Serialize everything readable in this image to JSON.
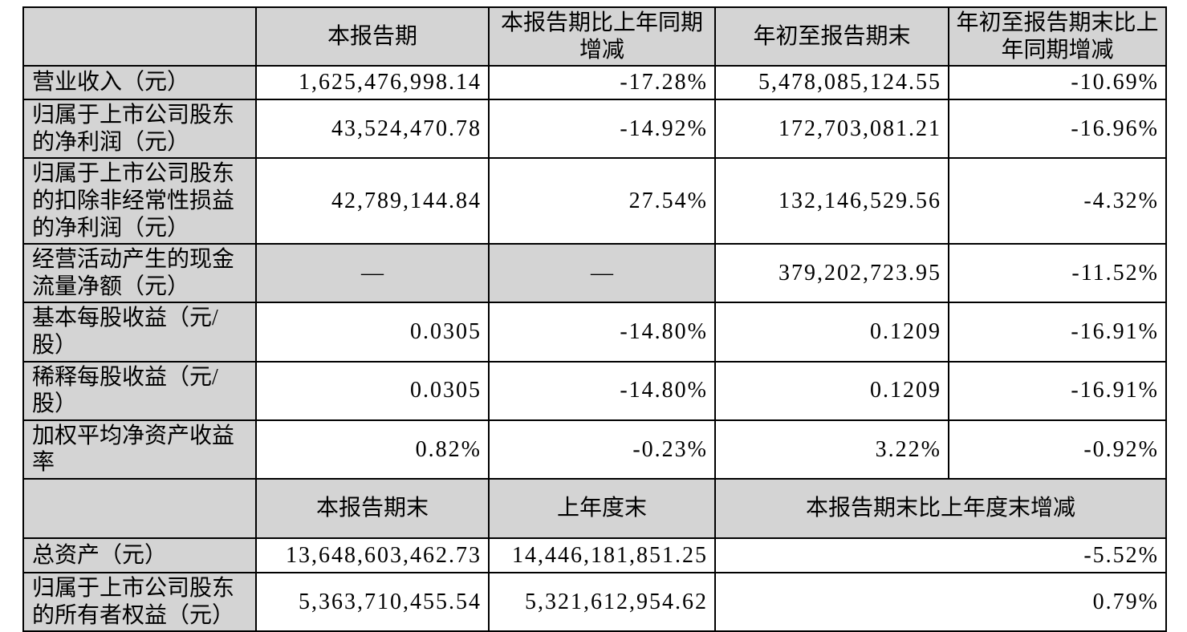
{
  "colors": {
    "header_bg": "#d4d4d4",
    "label_bg": "#d4d4d4",
    "cell_bg": "#ffffff",
    "border": "#000000",
    "text": "#000000"
  },
  "table": {
    "top_header": [
      "",
      "本报告期",
      "本报告期比上年同期增减",
      "年初至报告期末",
      "年初至报告期末比上年同期增减"
    ],
    "rows": [
      {
        "cells": [
          "营业收入（元）",
          "1,625,476,998.14",
          "-17.28%",
          "5,478,085,124.55",
          "-10.69%"
        ]
      },
      {
        "cells": [
          "归属于上市公司股东的净利润（元）",
          "43,524,470.78",
          "-14.92%",
          "172,703,081.21",
          "-16.96%"
        ]
      },
      {
        "cells": [
          "归属于上市公司股东的扣除非经常性损益的净利润（元）",
          "42,789,144.84",
          "27.54%",
          "132,146,529.56",
          "-4.32%"
        ]
      },
      {
        "cells": [
          "经营活动产生的现金流量净额（元）",
          "—",
          "—",
          "379,202,723.95",
          "-11.52%"
        ]
      },
      {
        "cells": [
          "基本每股收益（元/股）",
          "0.0305",
          "-14.80%",
          "0.1209",
          "-16.91%"
        ]
      },
      {
        "cells": [
          "稀释每股收益（元/股）",
          "0.0305",
          "-14.80%",
          "0.1209",
          "-16.91%"
        ]
      },
      {
        "cells": [
          "加权平均净资产收益率",
          "0.82%",
          "-0.23%",
          "3.22%",
          "-0.92%"
        ]
      }
    ],
    "bottom_header": [
      "",
      "本报告期末",
      "上年度末",
      "本报告期末比上年度末增减"
    ],
    "bottom_rows": [
      {
        "cells": [
          "总资产（元）",
          "13,648,603,462.73",
          "14,446,181,851.25",
          "-5.52%"
        ]
      },
      {
        "cells": [
          "归属于上市公司股东的所有者权益（元）",
          "5,363,710,455.54",
          "5,321,612,954.62",
          "0.79%"
        ]
      }
    ]
  }
}
